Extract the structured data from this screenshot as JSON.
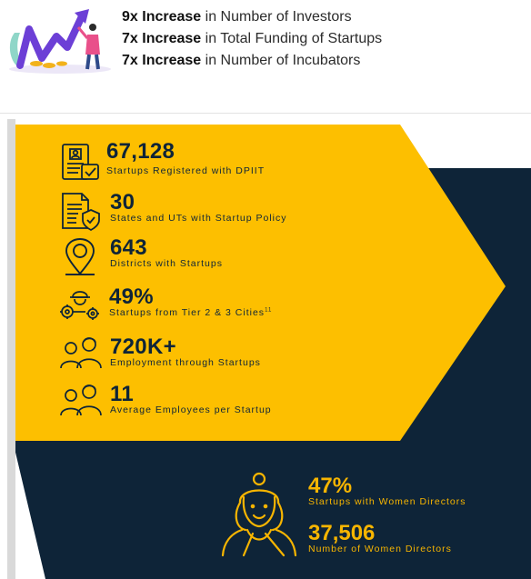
{
  "increases": [
    {
      "bold": "9x Increase",
      "rest": " in Number of Investors"
    },
    {
      "bold": "7x Increase",
      "rest": " in Total Funding of Startups"
    },
    {
      "bold": "7x Increase",
      "rest": " in Number of Incubators"
    }
  ],
  "stats": [
    {
      "value": "67,128",
      "label": "Startups Registered with DPIIT",
      "icon": "certificate-icon"
    },
    {
      "value": "30",
      "label": "States and UTs with Startup Policy",
      "icon": "policy-document-icon"
    },
    {
      "value": "643",
      "label": "Districts with Startups",
      "icon": "location-pin-icon"
    },
    {
      "value": "49%",
      "label": "Startups from Tier 2 & 3 Cities",
      "sup": "11",
      "icon": "worker-gears-icon"
    },
    {
      "value": "720K+",
      "label": "Employment through Startups",
      "icon": "people-group-icon"
    },
    {
      "value": "11",
      "label": "Average Employees per Startup",
      "icon": "people-group-icon"
    }
  ],
  "women": [
    {
      "value": "47%",
      "label": "Startups with Women Directors"
    },
    {
      "value": "37,506",
      "label": "Number of Women Directors"
    }
  ],
  "colors": {
    "accent": "#f7b500",
    "navy": "#0e2438"
  }
}
